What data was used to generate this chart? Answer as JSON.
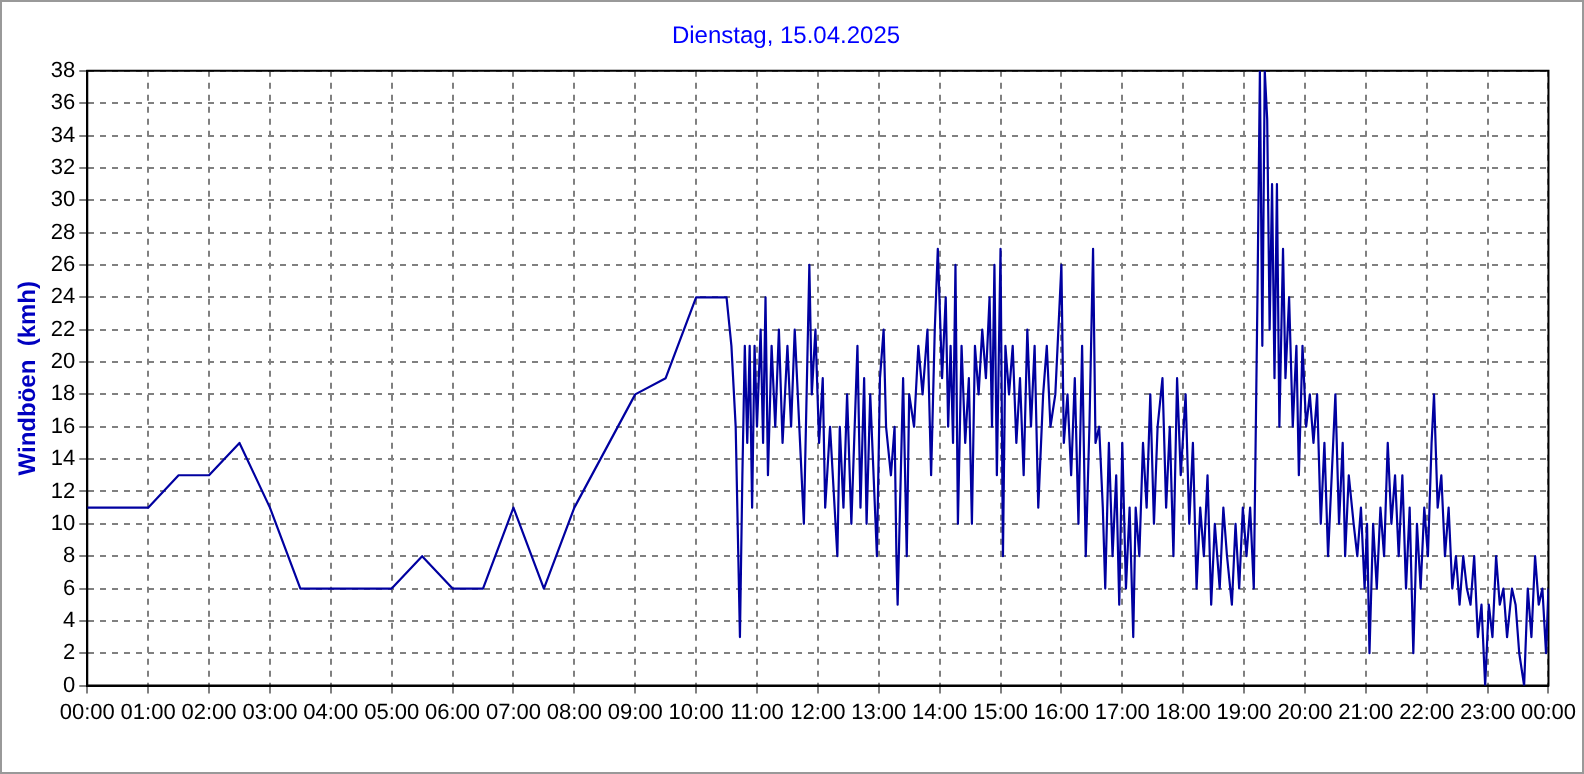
{
  "chart_data": {
    "type": "line",
    "title": "Dienstag, 15.04.2025",
    "ylabel": "Windböen  (kmh)",
    "x": [
      0,
      1,
      1.5,
      2,
      2.5,
      3,
      3.5,
      5,
      5.5,
      6,
      6.5,
      7,
      7.5,
      8,
      9,
      9.5,
      10,
      10.5,
      10.58,
      10.65,
      10.72,
      10.76,
      10.8,
      10.84,
      10.88,
      10.92,
      10.96,
      11,
      11.06,
      11.1,
      11.14,
      11.18,
      11.24,
      11.3,
      11.36,
      11.42,
      11.5,
      11.56,
      11.62,
      11.77,
      11.86,
      11.9,
      11.96,
      12.02,
      12.08,
      12.12,
      12.2,
      12.32,
      12.36,
      12.42,
      12.48,
      12.55,
      12.65,
      12.7,
      12.76,
      12.8,
      12.86,
      12.97,
      13.02,
      13.08,
      13.12,
      13.2,
      13.26,
      13.29,
      13.31,
      13.4,
      13.46,
      13.5,
      13.58,
      13.65,
      13.72,
      13.8,
      13.86,
      13.92,
      13.97,
      14.04,
      14.1,
      14.14,
      14.18,
      14.22,
      14.26,
      14.3,
      14.36,
      14.42,
      14.48,
      14.53,
      14.58,
      14.64,
      14.7,
      14.76,
      14.82,
      14.86,
      14.9,
      14.94,
      15.0,
      15.04,
      15.08,
      15.14,
      15.2,
      15.26,
      15.32,
      15.38,
      15.44,
      15.5,
      15.56,
      15.62,
      15.7,
      15.76,
      15.82,
      15.9,
      16.0,
      16.04,
      16.1,
      16.16,
      16.22,
      16.28,
      16.34,
      16.4,
      16.46,
      16.52,
      16.56,
      16.62,
      16.68,
      16.72,
      16.78,
      16.84,
      16.9,
      16.95,
      17.0,
      17.06,
      17.12,
      17.18,
      17.22,
      17.28,
      17.34,
      17.4,
      17.46,
      17.52,
      17.58,
      17.66,
      17.72,
      17.78,
      17.84,
      17.9,
      17.96,
      18.04,
      18.1,
      18.16,
      18.22,
      18.28,
      18.34,
      18.4,
      18.46,
      18.52,
      18.6,
      18.66,
      18.72,
      18.8,
      18.86,
      18.92,
      18.98,
      19.04,
      19.1,
      19.16,
      19.22,
      19.26,
      19.3,
      19.34,
      19.38,
      19.42,
      19.46,
      19.5,
      19.54,
      19.58,
      19.64,
      19.68,
      19.74,
      19.8,
      19.86,
      19.9,
      19.96,
      20.02,
      20.08,
      20.14,
      20.2,
      20.26,
      20.32,
      20.38,
      20.44,
      20.5,
      20.56,
      20.62,
      20.66,
      20.72,
      20.8,
      20.86,
      20.92,
      20.98,
      21.02,
      21.06,
      21.12,
      21.18,
      21.24,
      21.3,
      21.36,
      21.42,
      21.48,
      21.54,
      21.6,
      21.66,
      21.72,
      21.78,
      21.84,
      21.9,
      21.96,
      22.02,
      22.08,
      22.12,
      22.18,
      22.24,
      22.3,
      22.36,
      22.42,
      22.48,
      22.54,
      22.6,
      22.66,
      22.72,
      22.78,
      22.84,
      22.9,
      22.96,
      23.02,
      23.08,
      23.14,
      23.2,
      23.26,
      23.32,
      23.4,
      23.46,
      23.52,
      23.6,
      23.66,
      23.72,
      23.78,
      23.84,
      23.9,
      23.96,
      24
    ],
    "series": [
      {
        "color": "#0000a0",
        "values": [
          11,
          11,
          13,
          13,
          15,
          11,
          6,
          6,
          8,
          6,
          6,
          11,
          6,
          11,
          18,
          19,
          24,
          24,
          21,
          16,
          3,
          13,
          21,
          15,
          21,
          11,
          21,
          16,
          22,
          15,
          24,
          13,
          21,
          16,
          22,
          15,
          21,
          16,
          22,
          10,
          26,
          18,
          22,
          15,
          19,
          11,
          16,
          8,
          16,
          11,
          18,
          10,
          21,
          11,
          19,
          10,
          18,
          8,
          19,
          22,
          16,
          13,
          16,
          8,
          5,
          19,
          8,
          18,
          16,
          21,
          18,
          22,
          13,
          22,
          27,
          19,
          24,
          16,
          21,
          15,
          26,
          10,
          21,
          15,
          19,
          10,
          21,
          18,
          22,
          19,
          24,
          16,
          26,
          13,
          27,
          8,
          21,
          18,
          21,
          15,
          19,
          13,
          22,
          16,
          21,
          11,
          18,
          21,
          16,
          18,
          26,
          15,
          18,
          13,
          19,
          10,
          21,
          8,
          16,
          27,
          15,
          16,
          11,
          6,
          15,
          8,
          13,
          5,
          15,
          6,
          11,
          3,
          11,
          8,
          15,
          11,
          18,
          10,
          16,
          19,
          11,
          16,
          8,
          19,
          13,
          18,
          10,
          15,
          6,
          11,
          8,
          13,
          5,
          10,
          6,
          11,
          8,
          5,
          10,
          6,
          11,
          8,
          11,
          6,
          24,
          38,
          21,
          38,
          35,
          22,
          31,
          19,
          31,
          16,
          27,
          19,
          24,
          16,
          21,
          13,
          21,
          16,
          18,
          15,
          18,
          10,
          15,
          8,
          13,
          18,
          10,
          15,
          8,
          13,
          10,
          8,
          11,
          6,
          10,
          2,
          10,
          6,
          11,
          8,
          15,
          10,
          13,
          8,
          13,
          6,
          11,
          2,
          10,
          6,
          11,
          8,
          15,
          18,
          11,
          13,
          8,
          11,
          6,
          8,
          5,
          8,
          6,
          5,
          8,
          3,
          5,
          0,
          5,
          3,
          8,
          5,
          6,
          3,
          6,
          5,
          2,
          0,
          6,
          3,
          8,
          5,
          6,
          2,
          6
        ]
      }
    ],
    "xlim": [
      0,
      24
    ],
    "xticks": [
      {
        "value": 0,
        "label": "00:00"
      },
      {
        "value": 1,
        "label": "01:00"
      },
      {
        "value": 2,
        "label": "02:00"
      },
      {
        "value": 3,
        "label": "03:00"
      },
      {
        "value": 4,
        "label": "04:00"
      },
      {
        "value": 5,
        "label": "05:00"
      },
      {
        "value": 6,
        "label": "06:00"
      },
      {
        "value": 7,
        "label": "07:00"
      },
      {
        "value": 8,
        "label": "08:00"
      },
      {
        "value": 9,
        "label": "09:00"
      },
      {
        "value": 10,
        "label": "10:00"
      },
      {
        "value": 11,
        "label": "11:00"
      },
      {
        "value": 12,
        "label": "12:00"
      },
      {
        "value": 13,
        "label": "13:00"
      },
      {
        "value": 14,
        "label": "14:00"
      },
      {
        "value": 15,
        "label": "15:00"
      },
      {
        "value": 16,
        "label": "16:00"
      },
      {
        "value": 17,
        "label": "17:00"
      },
      {
        "value": 18,
        "label": "18:00"
      },
      {
        "value": 19,
        "label": "19:00"
      },
      {
        "value": 20,
        "label": "20:00"
      },
      {
        "value": 21,
        "label": "21:00"
      },
      {
        "value": 22,
        "label": "22:00"
      },
      {
        "value": 23,
        "label": "23:00"
      },
      {
        "value": 24,
        "label": "00:00"
      }
    ],
    "ylim": [
      0,
      38
    ],
    "yticks": [
      0,
      2,
      4,
      6,
      8,
      10,
      12,
      14,
      16,
      18,
      20,
      22,
      24,
      26,
      28,
      30,
      32,
      34,
      36,
      38
    ],
    "grid": true,
    "line_style": "solid",
    "marker": "none",
    "legend": false
  }
}
